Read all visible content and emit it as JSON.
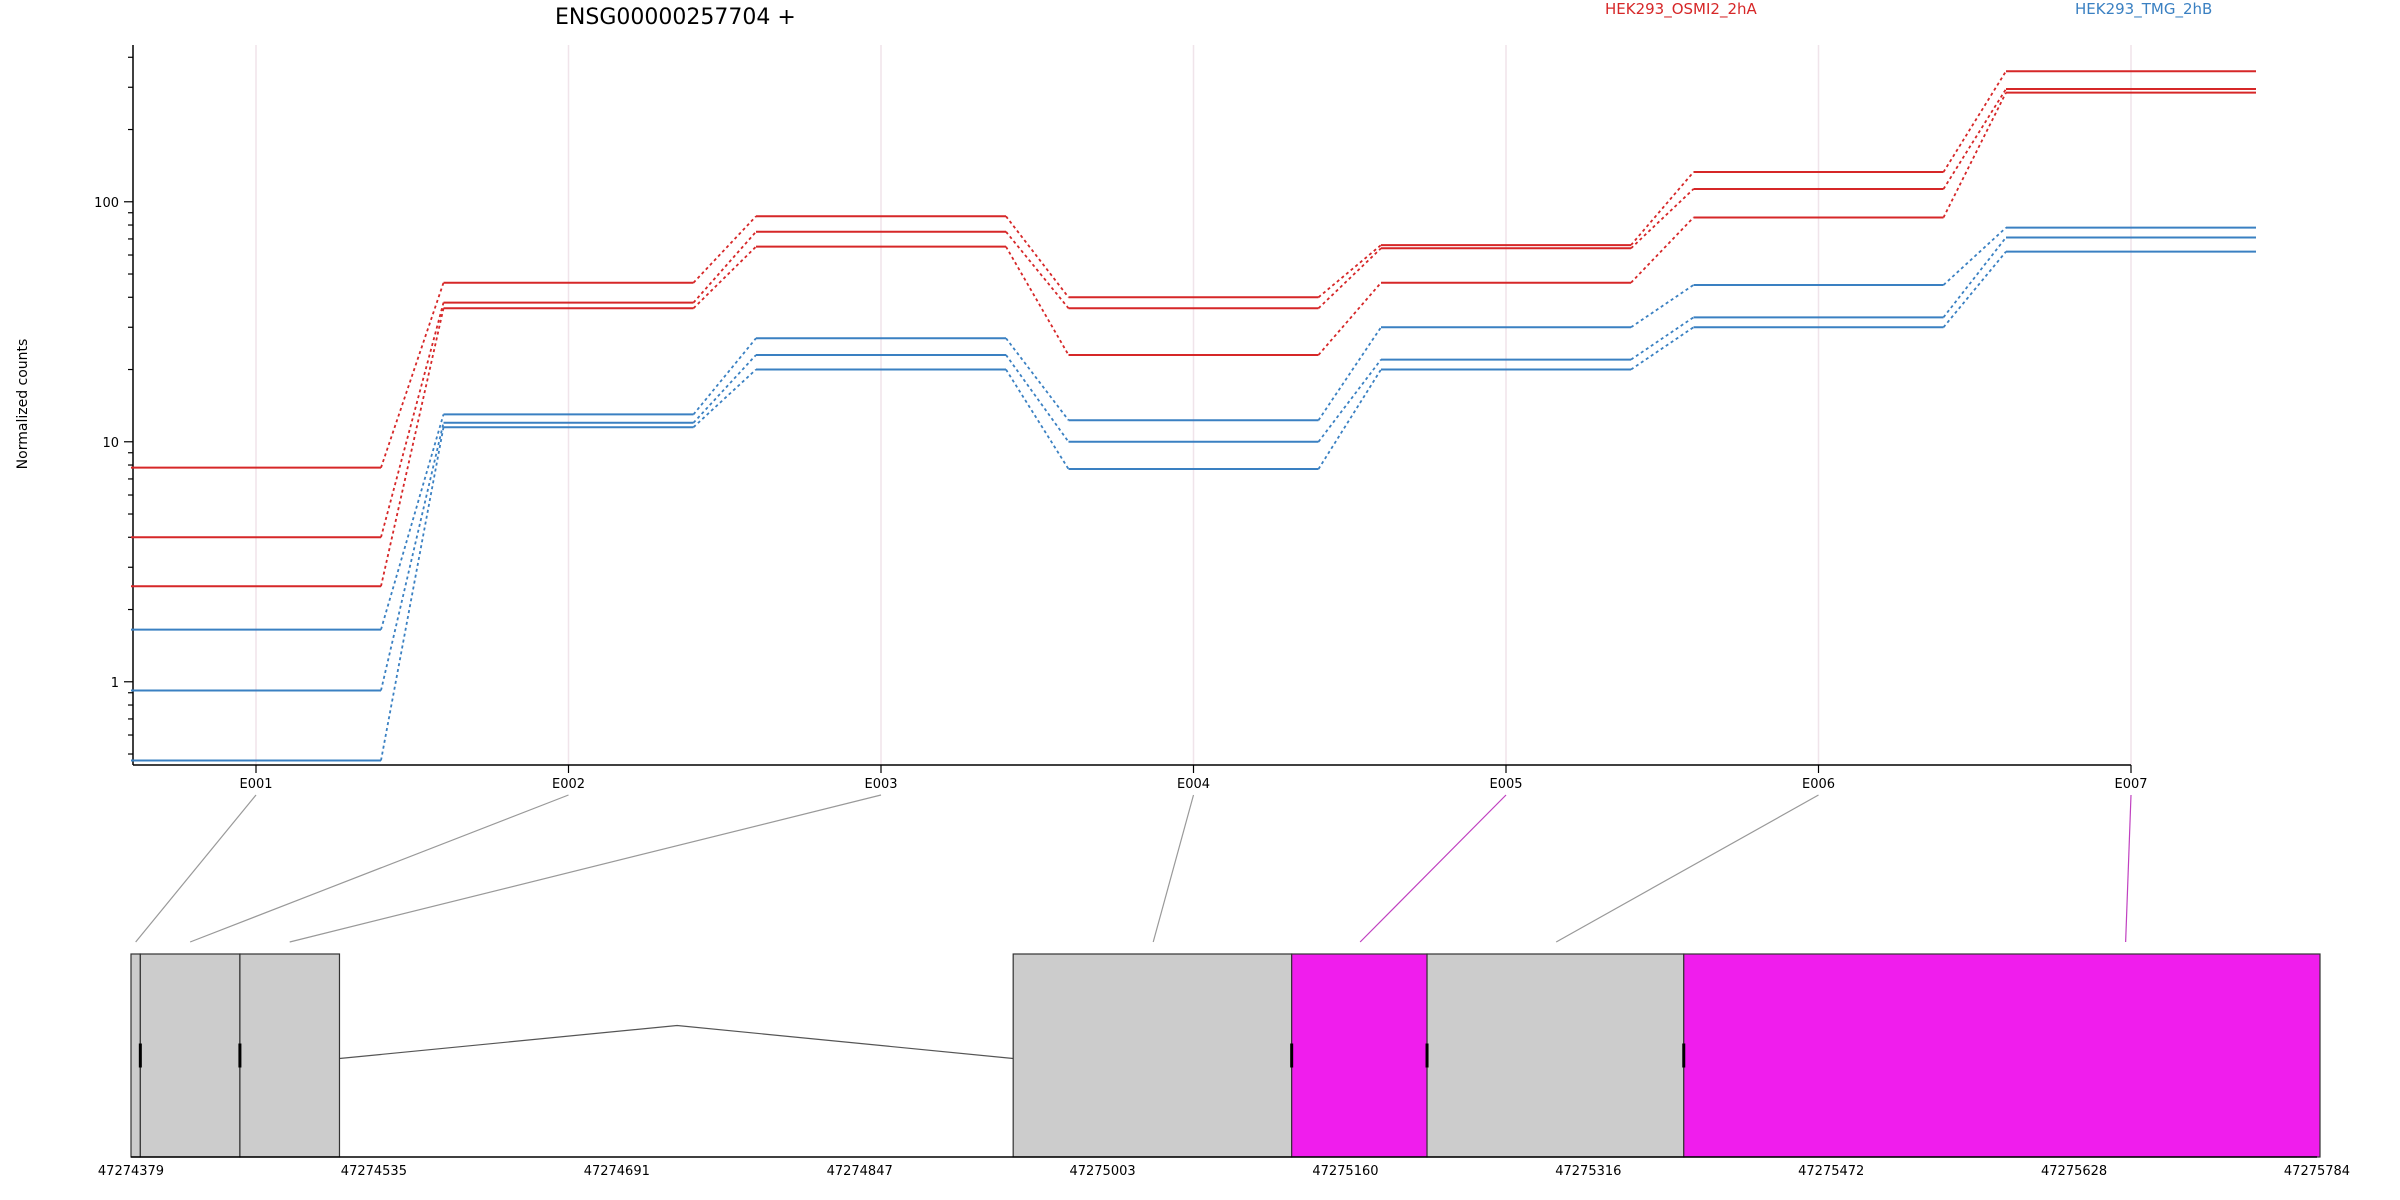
{
  "chart_data": [
    {
      "type": "line",
      "title": "ENSG00000257704 +",
      "ylabel": "Normalized counts",
      "xlabel": "",
      "y_scale": "log",
      "ylim": [
        0.45,
        450
      ],
      "y_tick_labels": [
        {
          "value": 1,
          "label": "1"
        },
        {
          "value": 10,
          "label": "10"
        },
        {
          "value": 100,
          "label": "100"
        }
      ],
      "categories": [
        "E001",
        "E002",
        "E003",
        "E004",
        "E005",
        "E006",
        "E007"
      ],
      "grid": true,
      "legend_position": "top-right",
      "legend": [
        {
          "label": "HEK293_OSMI2_2hA",
          "color": "#d62728"
        },
        {
          "label": "HEK293_TMG_2hB",
          "color": "#3a80c2"
        }
      ],
      "series": [
        {
          "group": "HEK293_OSMI2_2hA",
          "color": "#d62728",
          "values": [
            7.8,
            46,
            87,
            40,
            66,
            133,
            350
          ]
        },
        {
          "group": "HEK293_OSMI2_2hA",
          "color": "#d62728",
          "values": [
            4.0,
            38,
            75,
            36,
            64,
            113,
            295
          ]
        },
        {
          "group": "HEK293_OSMI2_2hA",
          "color": "#d62728",
          "values": [
            2.5,
            36,
            65,
            23,
            46,
            86,
            285
          ]
        },
        {
          "group": "HEK293_TMG_2hB",
          "color": "#3a80c2",
          "values": [
            1.65,
            13,
            27,
            12.3,
            30,
            45,
            78
          ]
        },
        {
          "group": "HEK293_TMG_2hB",
          "color": "#3a80c2",
          "values": [
            0.92,
            12,
            23,
            10,
            22,
            33,
            71
          ]
        },
        {
          "group": "HEK293_TMG_2hB",
          "color": "#3a80c2",
          "values": [
            0.47,
            11.5,
            20,
            7.7,
            20,
            30,
            62
          ]
        }
      ]
    },
    {
      "type": "diagram",
      "description_kind": "exon-structure",
      "genomic_start": 47274379,
      "genomic_end": 47275784,
      "axis_tick_labels": [
        "47274379",
        "47274535",
        "47274691",
        "47274847",
        "47275003",
        "47275160",
        "47275316",
        "47275472",
        "47275628",
        "47275784"
      ],
      "colors": {
        "normal": "#cccccc",
        "highlight": "#f01ded",
        "link_normal": "#999999",
        "link_highlight": "#c040c0"
      },
      "exons": [
        {
          "id": "E001",
          "start": 47274379,
          "end": 47274385,
          "highlight": false,
          "label_anchor": 47274382
        },
        {
          "id": "E002",
          "start": 47274385,
          "end": 47274449,
          "highlight": false,
          "label_anchor": 47274417
        },
        {
          "id": "E003",
          "start": 47274449,
          "end": 47274513,
          "highlight": false,
          "label_anchor": 47274481
        },
        {
          "id": "E004",
          "start": 47274946,
          "end": 47275125,
          "highlight": false,
          "label_anchor": 47275036
        },
        {
          "id": "E005",
          "start": 47275125,
          "end": 47275212,
          "highlight": true,
          "label_anchor": 47275169
        },
        {
          "id": "E006",
          "start": 47275212,
          "end": 47275377,
          "highlight": false,
          "label_anchor": 47275295
        },
        {
          "id": "E007",
          "start": 47275377,
          "end": 47275945,
          "highlight": true,
          "label_anchor": 47275661
        }
      ],
      "intron": {
        "from": 47274513,
        "peak": 47274730,
        "to": 47274946
      }
    }
  ]
}
